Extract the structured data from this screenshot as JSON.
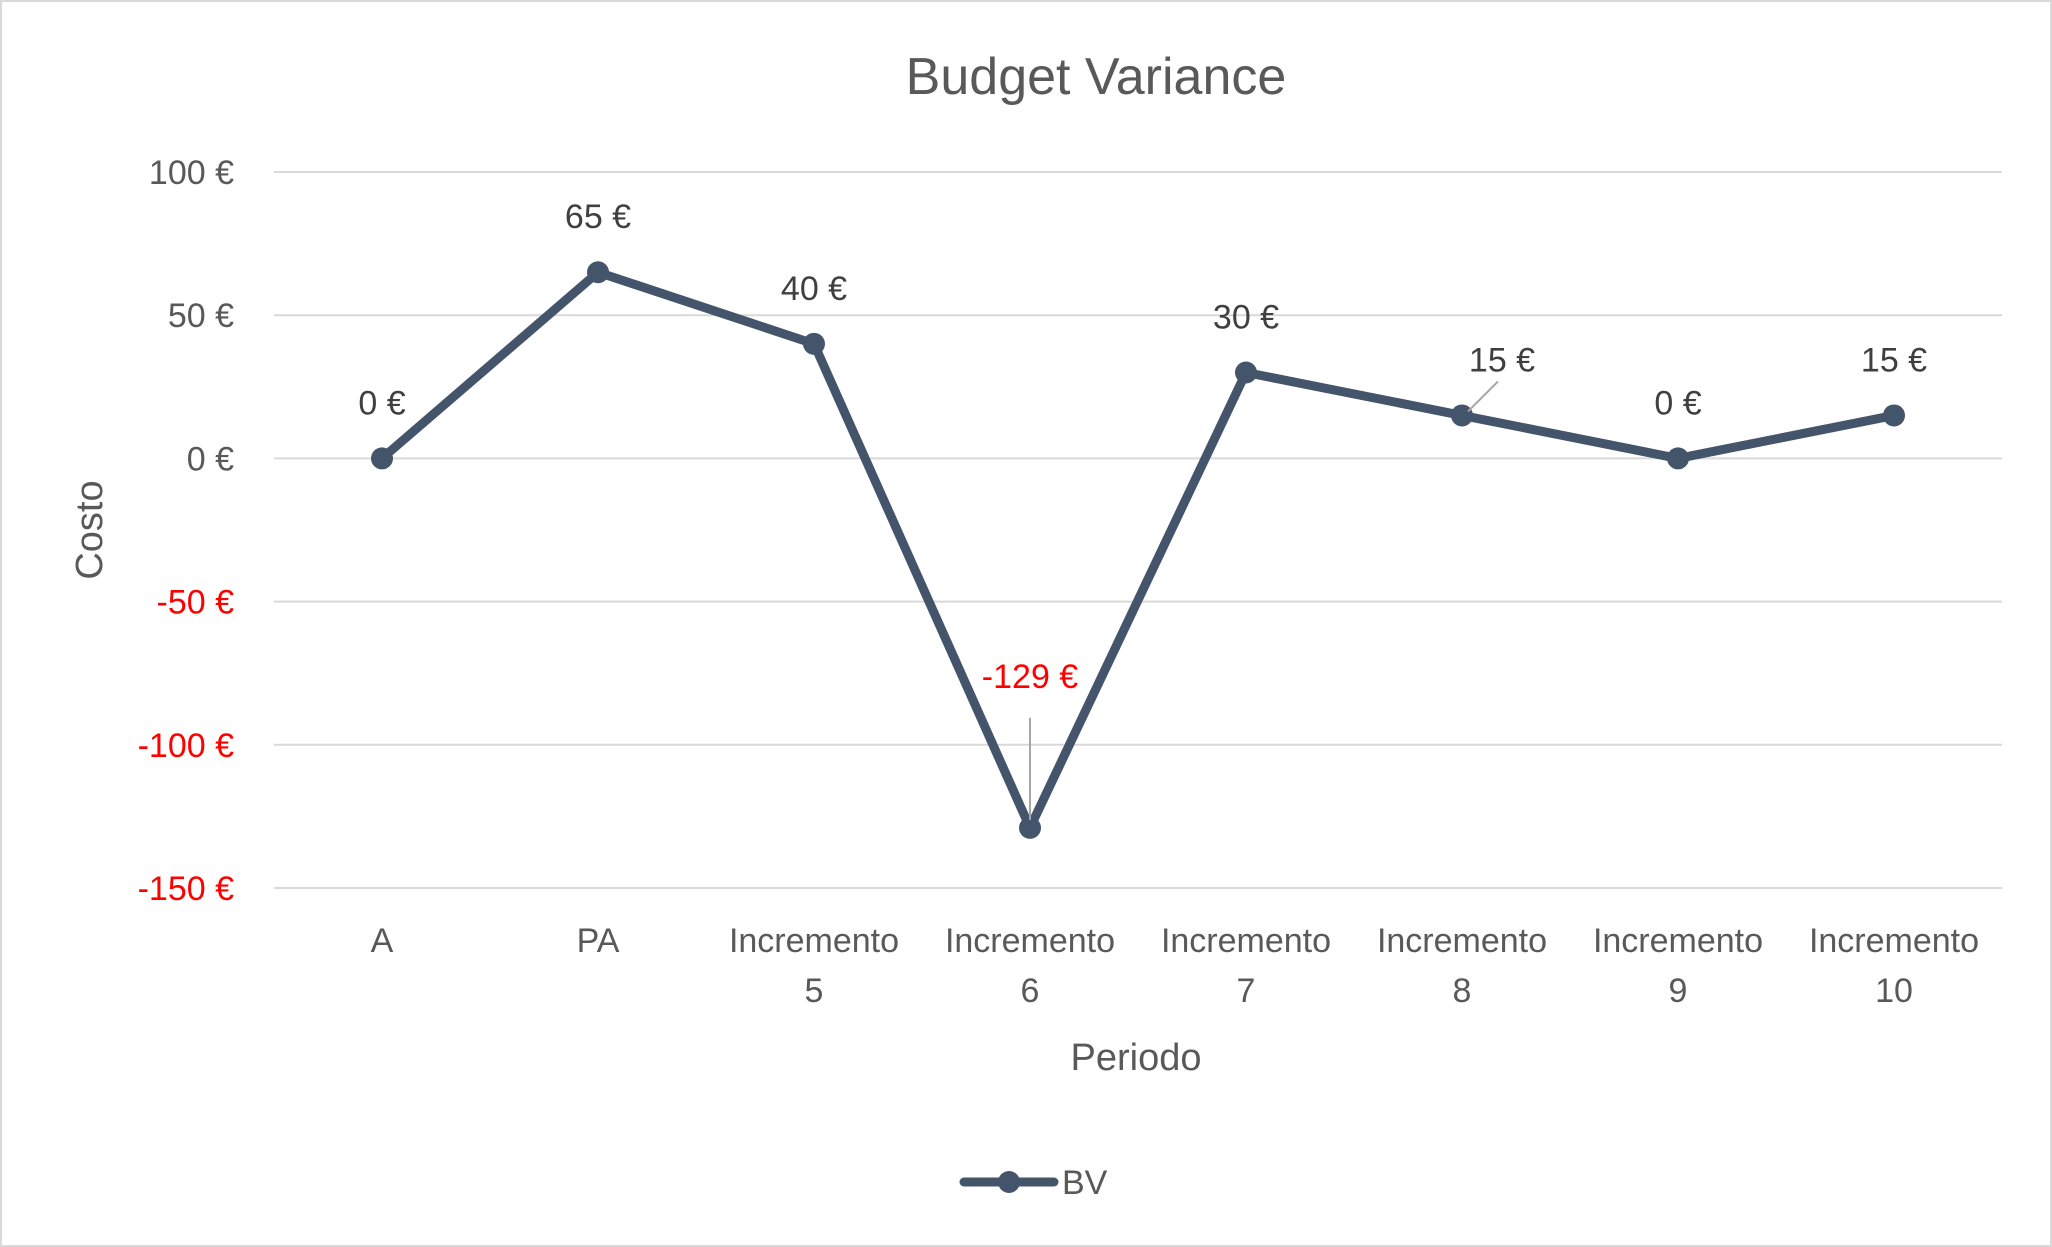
{
  "chart_data": {
    "type": "line",
    "title": "Budget Variance",
    "xlabel": "Periodo",
    "ylabel": "Costo",
    "categories": [
      [
        "A"
      ],
      [
        "PA"
      ],
      [
        "Incremento",
        "5"
      ],
      [
        "Incremento",
        "6"
      ],
      [
        "Incremento",
        "7"
      ],
      [
        "Incremento",
        "8"
      ],
      [
        "Incremento",
        "9"
      ],
      [
        "Incremento",
        "10"
      ]
    ],
    "series": [
      {
        "name": "BV",
        "values": [
          0,
          65,
          40,
          -129,
          30,
          15,
          0,
          15
        ],
        "data_labels": [
          "0 €",
          "65 €",
          "40 €",
          "-129 €",
          "30 €",
          "15 €",
          "0 €",
          "15 €"
        ]
      }
    ],
    "ylim": [
      -150,
      100
    ],
    "yticks": [
      100,
      50,
      0,
      -50,
      -100,
      -150
    ],
    "ytick_labels": [
      "100 €",
      "50 €",
      "0 €",
      "-50 €",
      "-100 €",
      "-150 €"
    ],
    "grid": true,
    "legend": "bottom",
    "colors": {
      "series": "#44546a",
      "negative": "#ff0000",
      "text": "#595959",
      "label": "#404040",
      "grid": "#d9d9d9",
      "leader": "#a6a6a6"
    }
  }
}
